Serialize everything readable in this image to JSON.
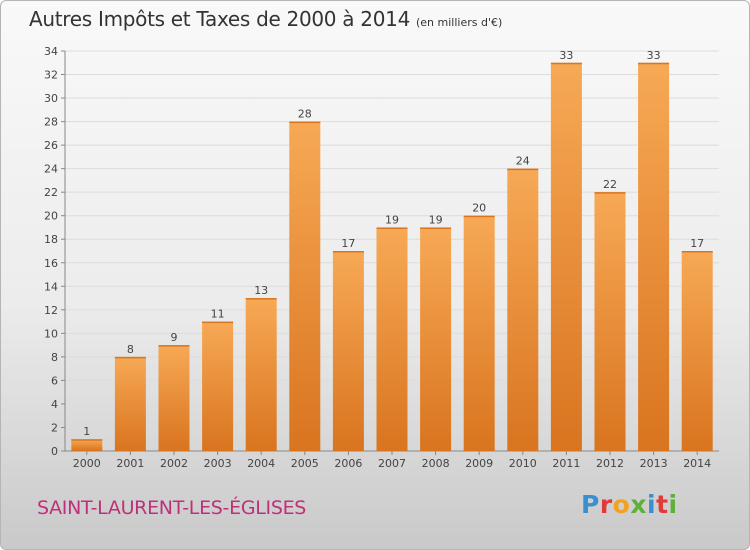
{
  "header": {
    "title": "Autres Impôts et Taxes de 2000 à 2014",
    "subtitle": "(en milliers d'€)"
  },
  "footer": {
    "commune": "SAINT-LAURENT-LES-ÉGLISES",
    "brand": "Proxiti"
  },
  "colors": {
    "bar_light": "#f7a955",
    "bar_dark": "#d9741f",
    "footer_name": "#c0307a",
    "brand_letters": [
      "#3a8fd0",
      "#e03a3a",
      "#f1a21e",
      "#5cb238",
      "#3a8fd0",
      "#e03a3a",
      "#5cb238"
    ]
  },
  "chart_data": {
    "type": "bar",
    "title": "Autres Impôts et Taxes de 2000 à 2014",
    "subtitle": "(en milliers d'€)",
    "xlabel": "",
    "ylabel": "",
    "categories": [
      "2000",
      "2001",
      "2002",
      "2003",
      "2004",
      "2005",
      "2006",
      "2007",
      "2008",
      "2009",
      "2010",
      "2011",
      "2012",
      "2013",
      "2014"
    ],
    "values": [
      1,
      8,
      9,
      11,
      13,
      28,
      17,
      19,
      19,
      20,
      24,
      33,
      22,
      33,
      17
    ],
    "data_labels": [
      "1",
      "8",
      "9",
      "11",
      "13",
      "28",
      "17",
      "19",
      "19",
      "20",
      "24",
      "33",
      "22",
      "33",
      "17"
    ],
    "ylim": [
      0,
      34
    ],
    "yticks": [
      0,
      2,
      4,
      6,
      8,
      10,
      12,
      14,
      16,
      18,
      20,
      22,
      24,
      26,
      28,
      30,
      32,
      34
    ],
    "grid": true,
    "legend": "none"
  }
}
